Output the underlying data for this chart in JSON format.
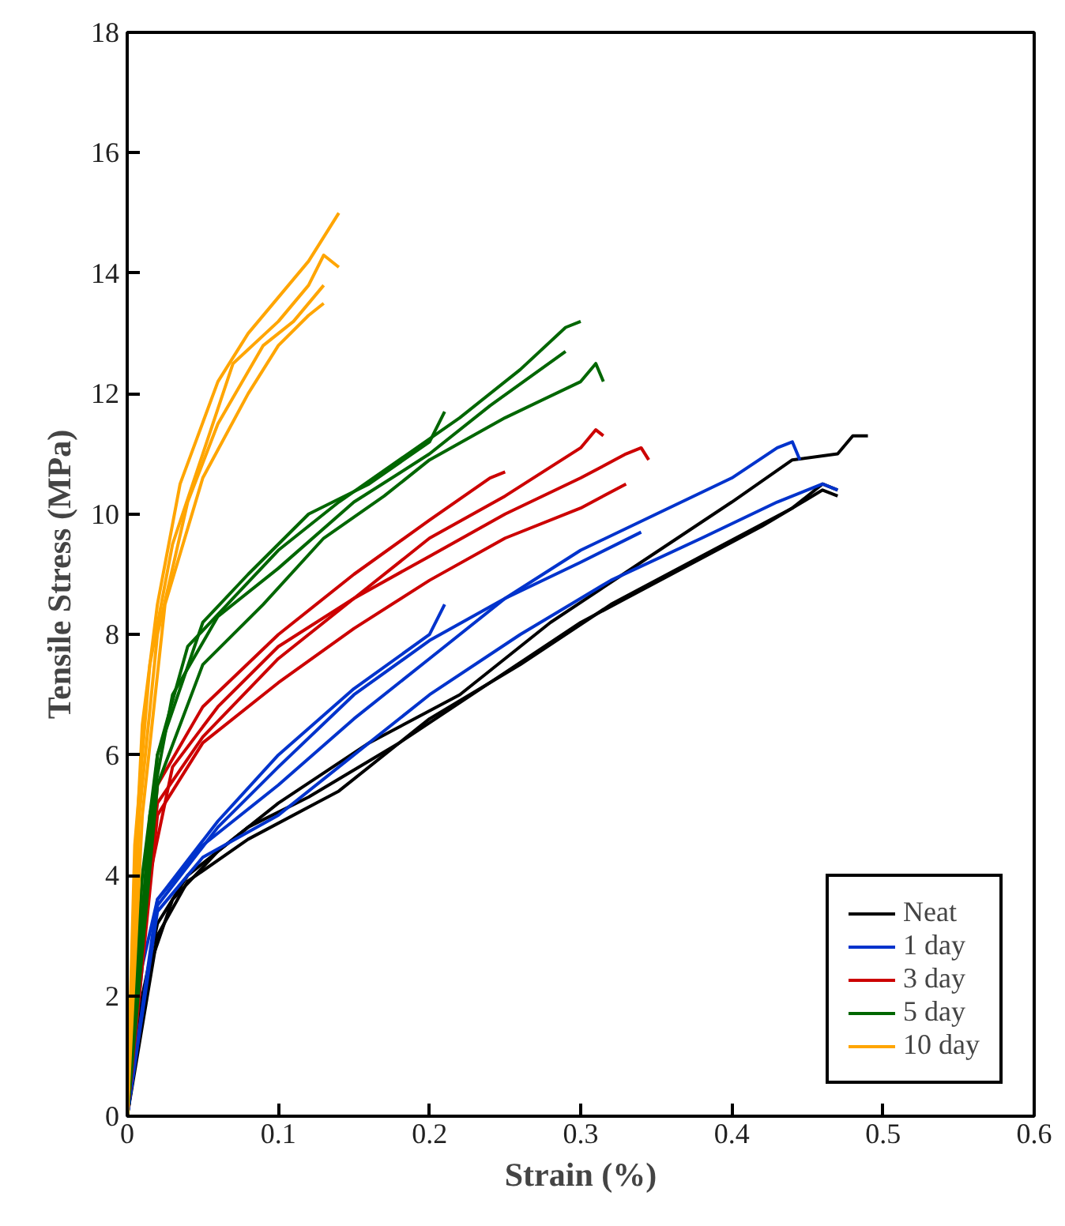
{
  "chart_data": {
    "type": "line",
    "xlabel": "Strain (%)",
    "ylabel": "Tensile Stress (MPa)",
    "xlim": [
      0,
      0.6
    ],
    "ylim": [
      0,
      18
    ],
    "xticks": [
      0,
      0.1,
      0.2,
      0.3,
      0.4,
      0.5,
      0.6
    ],
    "yticks": [
      0,
      2,
      4,
      6,
      8,
      10,
      12,
      14,
      16,
      18
    ],
    "grid": false,
    "legend": "bottom right",
    "line_style": "solid",
    "series": [
      {
        "name": "Neat",
        "color": "#000000",
        "x": [
          0,
          0.01,
          0.02,
          0.04,
          0.08,
          0.12,
          0.18,
          0.24,
          0.3,
          0.36,
          0.42,
          0.46,
          0.47
        ],
        "values": [
          0,
          2,
          3.2,
          4.0,
          4.8,
          5.3,
          6.2,
          7.2,
          8.2,
          9.0,
          9.8,
          10.4,
          10.3
        ]
      },
      {
        "color": "#000000",
        "x": [
          0,
          0.015,
          0.03,
          0.06,
          0.1,
          0.16,
          0.22,
          0.28,
          0.34,
          0.4,
          0.44,
          0.47,
          0.48,
          0.49
        ],
        "values": [
          0,
          2.5,
          3.6,
          4.4,
          5.2,
          6.2,
          7.0,
          8.2,
          9.2,
          10.2,
          10.9,
          11.0,
          11.3,
          11.3
        ]
      },
      {
        "color": "#000000",
        "x": [
          0,
          0.02,
          0.04,
          0.08,
          0.14,
          0.2,
          0.26,
          0.32,
          0.38,
          0.44,
          0.46,
          0.47
        ],
        "values": [
          0,
          3,
          3.9,
          4.6,
          5.4,
          6.6,
          7.5,
          8.5,
          9.3,
          10.1,
          10.5,
          10.4
        ]
      },
      {
        "name": "1 day",
        "color": "#0033cc",
        "x": [
          0,
          0.01,
          0.02,
          0.05,
          0.1,
          0.15,
          0.2,
          0.25,
          0.3,
          0.35,
          0.4,
          0.43,
          0.44,
          0.445
        ],
        "values": [
          0,
          2.5,
          3.6,
          4.5,
          5.5,
          6.6,
          7.6,
          8.6,
          9.4,
          10.0,
          10.6,
          11.1,
          11.2,
          10.9
        ]
      },
      {
        "color": "#0033cc",
        "x": [
          0,
          0.02,
          0.05,
          0.1,
          0.15,
          0.2,
          0.26,
          0.32,
          0.38,
          0.43,
          0.46,
          0.47
        ],
        "values": [
          0,
          3.4,
          4.3,
          5.0,
          6.0,
          7.0,
          8.0,
          8.9,
          9.6,
          10.2,
          10.5,
          10.4
        ]
      },
      {
        "color": "#0033cc",
        "x": [
          0,
          0.02,
          0.06,
          0.1,
          0.15,
          0.2,
          0.25,
          0.3,
          0.34
        ],
        "values": [
          0,
          3.5,
          4.8,
          5.8,
          7.0,
          7.9,
          8.6,
          9.2,
          9.7
        ]
      },
      {
        "color": "#0033cc",
        "x": [
          0,
          0.02,
          0.06,
          0.1,
          0.15,
          0.2,
          0.21
        ],
        "values": [
          0,
          3.6,
          4.9,
          6.0,
          7.1,
          8.0,
          8.5
        ]
      },
      {
        "name": "3 day",
        "color": "#cc0000",
        "x": [
          0,
          0.01,
          0.02,
          0.05,
          0.1,
          0.15,
          0.2,
          0.25,
          0.3,
          0.31,
          0.315
        ],
        "values": [
          0,
          3,
          5.2,
          6.3,
          7.6,
          8.6,
          9.6,
          10.3,
          11.1,
          11.4,
          11.3
        ]
      },
      {
        "color": "#cc0000",
        "x": [
          0,
          0.015,
          0.03,
          0.06,
          0.1,
          0.15,
          0.2,
          0.25,
          0.3,
          0.33,
          0.34,
          0.345
        ],
        "values": [
          0,
          4,
          5.8,
          6.8,
          7.8,
          8.6,
          9.3,
          10.0,
          10.6,
          11.0,
          11.1,
          10.9
        ]
      },
      {
        "color": "#cc0000",
        "x": [
          0,
          0.02,
          0.05,
          0.1,
          0.15,
          0.2,
          0.25,
          0.3,
          0.33
        ],
        "values": [
          0,
          5,
          6.2,
          7.2,
          8.1,
          8.9,
          9.6,
          10.1,
          10.5
        ]
      },
      {
        "color": "#cc0000",
        "x": [
          0,
          0.02,
          0.05,
          0.1,
          0.15,
          0.2,
          0.24,
          0.25
        ],
        "values": [
          0,
          5.5,
          6.8,
          8.0,
          9.0,
          9.9,
          10.6,
          10.7
        ]
      },
      {
        "name": "5 day",
        "color": "#006600",
        "x": [
          0,
          0.01,
          0.02,
          0.04,
          0.07,
          0.1,
          0.14,
          0.18,
          0.22,
          0.26,
          0.29,
          0.3
        ],
        "values": [
          0,
          4,
          6,
          7.8,
          8.6,
          9.4,
          10.2,
          10.9,
          11.6,
          12.4,
          13.1,
          13.2
        ]
      },
      {
        "color": "#006600",
        "x": [
          0,
          0.015,
          0.03,
          0.06,
          0.1,
          0.15,
          0.2,
          0.24,
          0.29
        ],
        "values": [
          0,
          5,
          7,
          8.3,
          9.1,
          10.2,
          11.0,
          11.8,
          12.7
        ]
      },
      {
        "color": "#006600",
        "x": [
          0,
          0.02,
          0.05,
          0.09,
          0.13,
          0.17,
          0.2,
          0.25,
          0.3,
          0.31,
          0.315
        ],
        "values": [
          0,
          5.5,
          7.5,
          8.5,
          9.6,
          10.3,
          10.9,
          11.6,
          12.2,
          12.5,
          12.2
        ]
      },
      {
        "color": "#006600",
        "x": [
          0,
          0.02,
          0.05,
          0.08,
          0.12,
          0.16,
          0.2,
          0.21
        ],
        "values": [
          0,
          6,
          8.2,
          9.0,
          10.0,
          10.5,
          11.2,
          11.7
        ]
      },
      {
        "name": "10 day",
        "color": "#ffa500",
        "x": [
          0,
          0.005,
          0.01,
          0.02,
          0.035,
          0.06,
          0.08,
          0.1,
          0.12,
          0.14
        ],
        "values": [
          0,
          4,
          6.5,
          8.5,
          10.5,
          12.2,
          13.0,
          13.6,
          14.2,
          15.0
        ]
      },
      {
        "color": "#ffa500",
        "x": [
          0,
          0.005,
          0.015,
          0.03,
          0.05,
          0.07,
          0.1,
          0.12,
          0.13,
          0.14
        ],
        "values": [
          0,
          4.5,
          7.5,
          9.5,
          11.0,
          12.5,
          13.2,
          13.8,
          14.3,
          14.1
        ]
      },
      {
        "color": "#ffa500",
        "x": [
          0,
          0.008,
          0.02,
          0.04,
          0.06,
          0.09,
          0.11,
          0.13
        ],
        "values": [
          0,
          5,
          8,
          10.2,
          11.5,
          12.8,
          13.2,
          13.8
        ]
      },
      {
        "color": "#ffa500",
        "x": [
          0,
          0.01,
          0.025,
          0.05,
          0.08,
          0.1,
          0.12,
          0.13
        ],
        "values": [
          0,
          5,
          8.5,
          10.6,
          12.0,
          12.8,
          13.3,
          13.5
        ]
      }
    ]
  }
}
